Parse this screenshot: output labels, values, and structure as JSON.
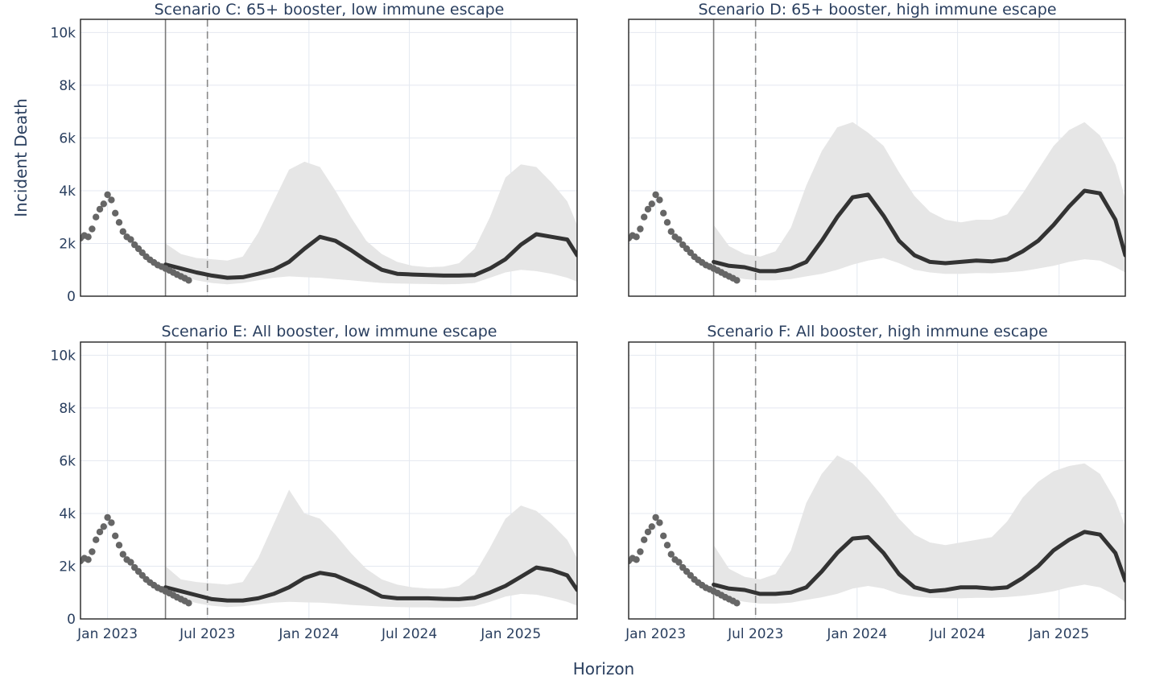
{
  "chart_data": {
    "type": "line",
    "grid": true,
    "shared_axes": true,
    "xlabel": "Horizon",
    "ylabel": "Incident Death",
    "xlim": [
      "2022-11-13",
      "2025-05-01"
    ],
    "ylim": [
      0,
      10500
    ],
    "x_ticks": [
      {
        "date": "2023-01-01",
        "label": "Jan 2023"
      },
      {
        "date": "2023-07-01",
        "label": "Jul 2023"
      },
      {
        "date": "2024-01-01",
        "label": "Jan 2024"
      },
      {
        "date": "2024-07-01",
        "label": "Jul 2024"
      },
      {
        "date": "2025-01-01",
        "label": "Jan 2025"
      }
    ],
    "y_ticks": [
      {
        "value": 0,
        "label": "0"
      },
      {
        "value": 2000,
        "label": "2k"
      },
      {
        "value": 4000,
        "label": "4k"
      },
      {
        "value": 6000,
        "label": "6k"
      },
      {
        "value": 8000,
        "label": "8k"
      },
      {
        "value": 10000,
        "label": "10k"
      }
    ],
    "projection_start_date": "2023-04-16",
    "vertical_dashed_date": "2023-07-01",
    "observed": {
      "x": [
        "2022-11-13",
        "2022-11-20",
        "2022-11-27",
        "2022-12-04",
        "2022-12-11",
        "2022-12-18",
        "2022-12-25",
        "2023-01-01",
        "2023-01-08",
        "2023-01-15",
        "2023-01-22",
        "2023-01-29",
        "2023-02-05",
        "2023-02-12",
        "2023-02-19",
        "2023-02-26",
        "2023-03-05",
        "2023-03-12",
        "2023-03-19",
        "2023-03-26",
        "2023-04-02",
        "2023-04-09",
        "2023-04-16",
        "2023-04-23",
        "2023-04-30",
        "2023-05-07",
        "2023-05-14",
        "2023-05-21",
        "2023-05-28"
      ],
      "y": [
        2200,
        2300,
        2250,
        2550,
        3000,
        3300,
        3500,
        3850,
        3650,
        3150,
        2800,
        2450,
        2250,
        2150,
        1950,
        1800,
        1650,
        1500,
        1380,
        1280,
        1180,
        1120,
        1050,
        980,
        900,
        820,
        750,
        680,
        600
      ]
    },
    "panels": [
      {
        "title": "Scenario C: 65+ booster, low immune escape",
        "projection": {
          "x": [
            "2023-04-16",
            "2023-05-14",
            "2023-06-11",
            "2023-07-09",
            "2023-08-06",
            "2023-09-03",
            "2023-10-01",
            "2023-10-29",
            "2023-11-26",
            "2023-12-24",
            "2024-01-21",
            "2024-02-18",
            "2024-03-17",
            "2024-04-14",
            "2024-05-12",
            "2024-06-09",
            "2024-07-07",
            "2024-08-04",
            "2024-09-01",
            "2024-09-29",
            "2024-10-27",
            "2024-11-24",
            "2024-12-22",
            "2025-01-19",
            "2025-02-16",
            "2025-03-16",
            "2025-04-13",
            "2025-05-01"
          ],
          "y": [
            1200,
            1050,
            900,
            780,
            700,
            720,
            850,
            1000,
            1300,
            1800,
            2250,
            2100,
            1750,
            1350,
            1000,
            850,
            820,
            800,
            780,
            780,
            800,
            1050,
            1400,
            1950,
            2350,
            2250,
            2150,
            1550
          ]
        },
        "band_upper": [
          2000,
          1600,
          1450,
          1400,
          1350,
          1500,
          2400,
          3600,
          4800,
          5100,
          4900,
          4000,
          3000,
          2100,
          1600,
          1300,
          1150,
          1100,
          1120,
          1250,
          1800,
          3000,
          4500,
          5000,
          4900,
          4300,
          3600,
          2700
        ],
        "band_lower": [
          950,
          750,
          600,
          500,
          450,
          500,
          600,
          700,
          750,
          720,
          700,
          650,
          600,
          550,
          500,
          480,
          470,
          460,
          450,
          460,
          500,
          700,
          900,
          1000,
          950,
          850,
          700,
          550
        ]
      },
      {
        "title": "Scenario D: 65+ booster, high immune escape",
        "projection": {
          "x": [
            "2023-04-16",
            "2023-05-14",
            "2023-06-11",
            "2023-07-09",
            "2023-08-06",
            "2023-09-03",
            "2023-10-01",
            "2023-10-29",
            "2023-11-26",
            "2023-12-24",
            "2024-01-21",
            "2024-02-18",
            "2024-03-17",
            "2024-04-14",
            "2024-05-12",
            "2024-06-09",
            "2024-07-07",
            "2024-08-04",
            "2024-09-01",
            "2024-09-29",
            "2024-10-27",
            "2024-11-24",
            "2024-12-22",
            "2025-01-19",
            "2025-02-16",
            "2025-03-16",
            "2025-04-13",
            "2025-05-01"
          ],
          "y": [
            1300,
            1150,
            1100,
            950,
            950,
            1050,
            1300,
            2100,
            3000,
            3750,
            3850,
            3050,
            2100,
            1550,
            1300,
            1250,
            1300,
            1350,
            1320,
            1400,
            1700,
            2100,
            2700,
            3400,
            4000,
            3900,
            2900,
            1550
          ]
        },
        "band_upper": [
          2700,
          1900,
          1600,
          1500,
          1700,
          2600,
          4200,
          5500,
          6400,
          6600,
          6200,
          5700,
          4700,
          3800,
          3200,
          2900,
          2800,
          2900,
          2900,
          3100,
          3900,
          4800,
          5700,
          6300,
          6600,
          6100,
          5000,
          3700
        ],
        "band_lower": [
          950,
          750,
          650,
          600,
          600,
          650,
          750,
          850,
          1000,
          1200,
          1350,
          1450,
          1250,
          1000,
          900,
          850,
          850,
          880,
          870,
          900,
          950,
          1050,
          1150,
          1300,
          1400,
          1350,
          1100,
          900
        ]
      },
      {
        "title": "Scenario E: All booster, low immune escape",
        "projection": {
          "x": [
            "2023-04-16",
            "2023-05-14",
            "2023-06-11",
            "2023-07-09",
            "2023-08-06",
            "2023-09-03",
            "2023-10-01",
            "2023-10-29",
            "2023-11-26",
            "2023-12-24",
            "2024-01-21",
            "2024-02-18",
            "2024-03-17",
            "2024-04-14",
            "2024-05-12",
            "2024-06-09",
            "2024-07-07",
            "2024-08-04",
            "2024-09-01",
            "2024-09-29",
            "2024-10-27",
            "2024-11-24",
            "2024-12-22",
            "2025-01-19",
            "2025-02-16",
            "2025-03-16",
            "2025-04-13",
            "2025-05-01"
          ],
          "y": [
            1200,
            1050,
            900,
            750,
            700,
            700,
            780,
            950,
            1200,
            1550,
            1750,
            1650,
            1400,
            1150,
            850,
            780,
            780,
            780,
            760,
            750,
            800,
            1000,
            1250,
            1600,
            1950,
            1850,
            1650,
            1100
          ]
        },
        "band_upper": [
          2000,
          1500,
          1400,
          1350,
          1300,
          1400,
          2300,
          3600,
          4900,
          4000,
          3800,
          3200,
          2500,
          1900,
          1500,
          1300,
          1200,
          1150,
          1150,
          1250,
          1700,
          2700,
          3800,
          4300,
          4100,
          3600,
          3000,
          2300
        ],
        "band_lower": [
          950,
          750,
          600,
          500,
          450,
          480,
          550,
          620,
          650,
          630,
          620,
          580,
          530,
          500,
          470,
          450,
          440,
          440,
          430,
          440,
          480,
          650,
          850,
          950,
          920,
          800,
          650,
          500
        ]
      },
      {
        "title": "Scenario F: All booster, high immune escape",
        "projection": {
          "x": [
            "2023-04-16",
            "2023-05-14",
            "2023-06-11",
            "2023-07-09",
            "2023-08-06",
            "2023-09-03",
            "2023-10-01",
            "2023-10-29",
            "2023-11-26",
            "2023-12-24",
            "2024-01-21",
            "2024-02-18",
            "2024-03-17",
            "2024-04-14",
            "2024-05-12",
            "2024-06-09",
            "2024-07-07",
            "2024-08-04",
            "2024-09-01",
            "2024-09-29",
            "2024-10-27",
            "2024-11-24",
            "2024-12-22",
            "2025-01-19",
            "2025-02-16",
            "2025-03-16",
            "2025-04-13",
            "2025-05-01"
          ],
          "y": [
            1300,
            1150,
            1100,
            950,
            950,
            1000,
            1200,
            1800,
            2500,
            3050,
            3100,
            2500,
            1700,
            1200,
            1050,
            1100,
            1200,
            1200,
            1150,
            1200,
            1550,
            2000,
            2600,
            3000,
            3300,
            3200,
            2500,
            1450
          ]
        },
        "band_upper": [
          2800,
          1900,
          1600,
          1500,
          1700,
          2600,
          4400,
          5500,
          6200,
          5900,
          5300,
          4600,
          3800,
          3200,
          2900,
          2800,
          2900,
          3000,
          3100,
          3700,
          4600,
          5200,
          5600,
          5800,
          5900,
          5500,
          4500,
          3500
        ],
        "band_lower": [
          950,
          750,
          650,
          580,
          580,
          620,
          720,
          820,
          950,
          1150,
          1250,
          1150,
          950,
          850,
          800,
          780,
          780,
          800,
          800,
          830,
          880,
          950,
          1050,
          1200,
          1300,
          1200,
          900,
          650
        ]
      }
    ]
  }
}
